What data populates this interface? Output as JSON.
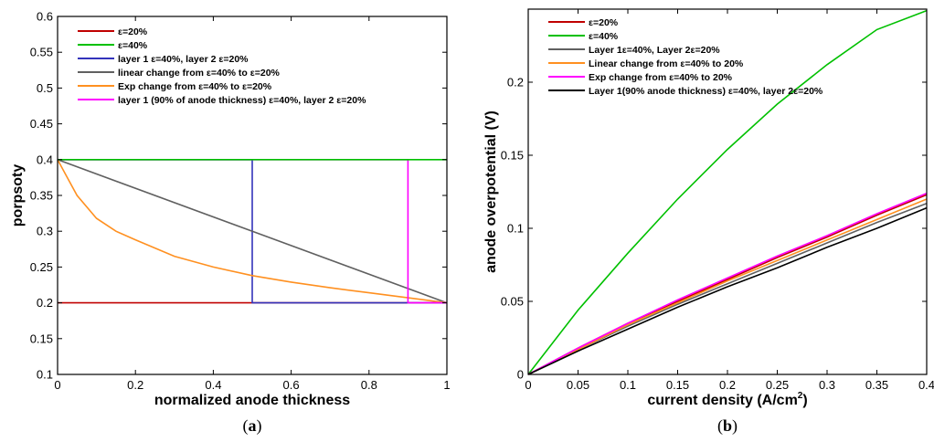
{
  "chart_data": [
    {
      "type": "line",
      "panel_label_open": "(",
      "panel_label_letter": "a",
      "panel_label_close": ")",
      "xlabel": "normalized anode thickness",
      "ylabel": "porpsoty",
      "xlim": [
        0,
        1
      ],
      "ylim": [
        0.1,
        0.6
      ],
      "x_ticks": [
        0,
        0.2,
        0.4,
        0.6,
        0.8,
        1
      ],
      "x_tick_labels": [
        "0",
        "0.2",
        "0.4",
        "0.6",
        "0.8",
        "1"
      ],
      "y_ticks": [
        0.1,
        0.15,
        0.2,
        0.25,
        0.3,
        0.35,
        0.4,
        0.45,
        0.5,
        0.55,
        0.6
      ],
      "y_tick_labels": [
        "0.1",
        "0.15",
        "0.2",
        "0.25",
        "0.3",
        "0.35",
        "0.4",
        "0.45",
        "0.5",
        "0.55",
        "0.6"
      ],
      "legend_position": "top-left",
      "grid": false,
      "series": [
        {
          "name": "ε=20%",
          "color": "#c00000",
          "x": [
            0,
            1
          ],
          "y": [
            0.2,
            0.2
          ]
        },
        {
          "name": "ε=40%",
          "color": "#00c000",
          "x": [
            0,
            1
          ],
          "y": [
            0.4,
            0.4
          ]
        },
        {
          "name": "layer 1 ε=40%, layer 2 ε=20%",
          "color": "#3333bb",
          "x": [
            0,
            0.5,
            0.5,
            1
          ],
          "y": [
            0.4,
            0.4,
            0.2,
            0.2
          ]
        },
        {
          "name": "linear change from ε=40% to ε=20%",
          "color": "#606060",
          "x": [
            0,
            1
          ],
          "y": [
            0.4,
            0.2
          ]
        },
        {
          "name": "Exp change from ε=40% to ε=20%",
          "color": "#ff9020",
          "x": [
            0,
            0.02,
            0.05,
            0.1,
            0.15,
            0.2,
            0.3,
            0.4,
            0.5,
            0.6,
            0.7,
            0.8,
            0.9,
            1.0
          ],
          "y": [
            0.4,
            0.38,
            0.35,
            0.318,
            0.3,
            0.288,
            0.265,
            0.25,
            0.238,
            0.229,
            0.221,
            0.214,
            0.207,
            0.2
          ]
        },
        {
          "name": "layer 1 (90% of anode thickness) ε=40%, layer 2 ε=20%",
          "color": "#ff00ff",
          "x": [
            0,
            0.9,
            0.9,
            1
          ],
          "y": [
            0.4,
            0.4,
            0.2,
            0.2
          ]
        }
      ],
      "draw_order": [
        0,
        2,
        3,
        4,
        5,
        1
      ]
    },
    {
      "type": "line",
      "panel_label_open": "(",
      "panel_label_letter": "b",
      "panel_label_close": ")",
      "xlabel_main": "current density (A/cm",
      "xlabel_sup": "2",
      "xlabel_end": ")",
      "ylabel": "anode overpotential (V)",
      "xlim": [
        0,
        0.4
      ],
      "ylim": [
        0,
        0.25
      ],
      "x_ticks": [
        0,
        0.05,
        0.1,
        0.15,
        0.2,
        0.25,
        0.3,
        0.35,
        0.4
      ],
      "x_tick_labels": [
        "0",
        "0.05",
        "0.1",
        "0.15",
        "0.2",
        "0.25",
        "0.3",
        "0.35",
        "0.4"
      ],
      "y_ticks": [
        0,
        0.05,
        0.1,
        0.15,
        0.2
      ],
      "y_tick_labels": [
        "0",
        "0.05",
        "0.1",
        "0.15",
        "0.2"
      ],
      "legend_position": "top-left",
      "grid": false,
      "series": [
        {
          "name": "ε=20%",
          "color": "#c00000",
          "x": [
            0,
            0.05,
            0.1,
            0.15,
            0.2,
            0.25,
            0.3,
            0.35,
            0.4
          ],
          "y": [
            0,
            0.018,
            0.035,
            0.05,
            0.065,
            0.08,
            0.094,
            0.109,
            0.123
          ]
        },
        {
          "name": "ε=40%",
          "color": "#00c000",
          "x": [
            0,
            0.05,
            0.1,
            0.15,
            0.2,
            0.25,
            0.3,
            0.35,
            0.4
          ],
          "y": [
            0,
            0.044,
            0.083,
            0.12,
            0.154,
            0.185,
            0.212,
            0.236,
            0.249
          ]
        },
        {
          "name": "Layer 1ε=40%, Layer 2ε=20%",
          "color": "#606060",
          "x": [
            0,
            0.05,
            0.1,
            0.15,
            0.2,
            0.25,
            0.3,
            0.35,
            0.4
          ],
          "y": [
            0,
            0.017,
            0.033,
            0.048,
            0.062,
            0.076,
            0.09,
            0.104,
            0.117
          ]
        },
        {
          "name": "Linear change from ε=40% to 20%",
          "color": "#ff9020",
          "x": [
            0,
            0.05,
            0.1,
            0.15,
            0.2,
            0.25,
            0.3,
            0.35,
            0.4
          ],
          "y": [
            0,
            0.017,
            0.034,
            0.049,
            0.064,
            0.078,
            0.092,
            0.106,
            0.12
          ]
        },
        {
          "name": "Exp change from ε=40% to 20%",
          "color": "#ff00ff",
          "x": [
            0,
            0.05,
            0.1,
            0.15,
            0.2,
            0.25,
            0.3,
            0.35,
            0.4
          ],
          "y": [
            0,
            0.018,
            0.035,
            0.051,
            0.066,
            0.081,
            0.095,
            0.11,
            0.124
          ]
        },
        {
          "name": "Layer 1(90% anode thickness) ε=40%, layer 2ε=20%",
          "color": "#000000",
          "x": [
            0,
            0.05,
            0.1,
            0.15,
            0.2,
            0.25,
            0.3,
            0.35,
            0.4
          ],
          "y": [
            0,
            0.016,
            0.031,
            0.046,
            0.06,
            0.073,
            0.087,
            0.1,
            0.114
          ]
        }
      ],
      "draw_order": [
        1,
        0,
        2,
        3,
        4,
        5
      ]
    }
  ]
}
